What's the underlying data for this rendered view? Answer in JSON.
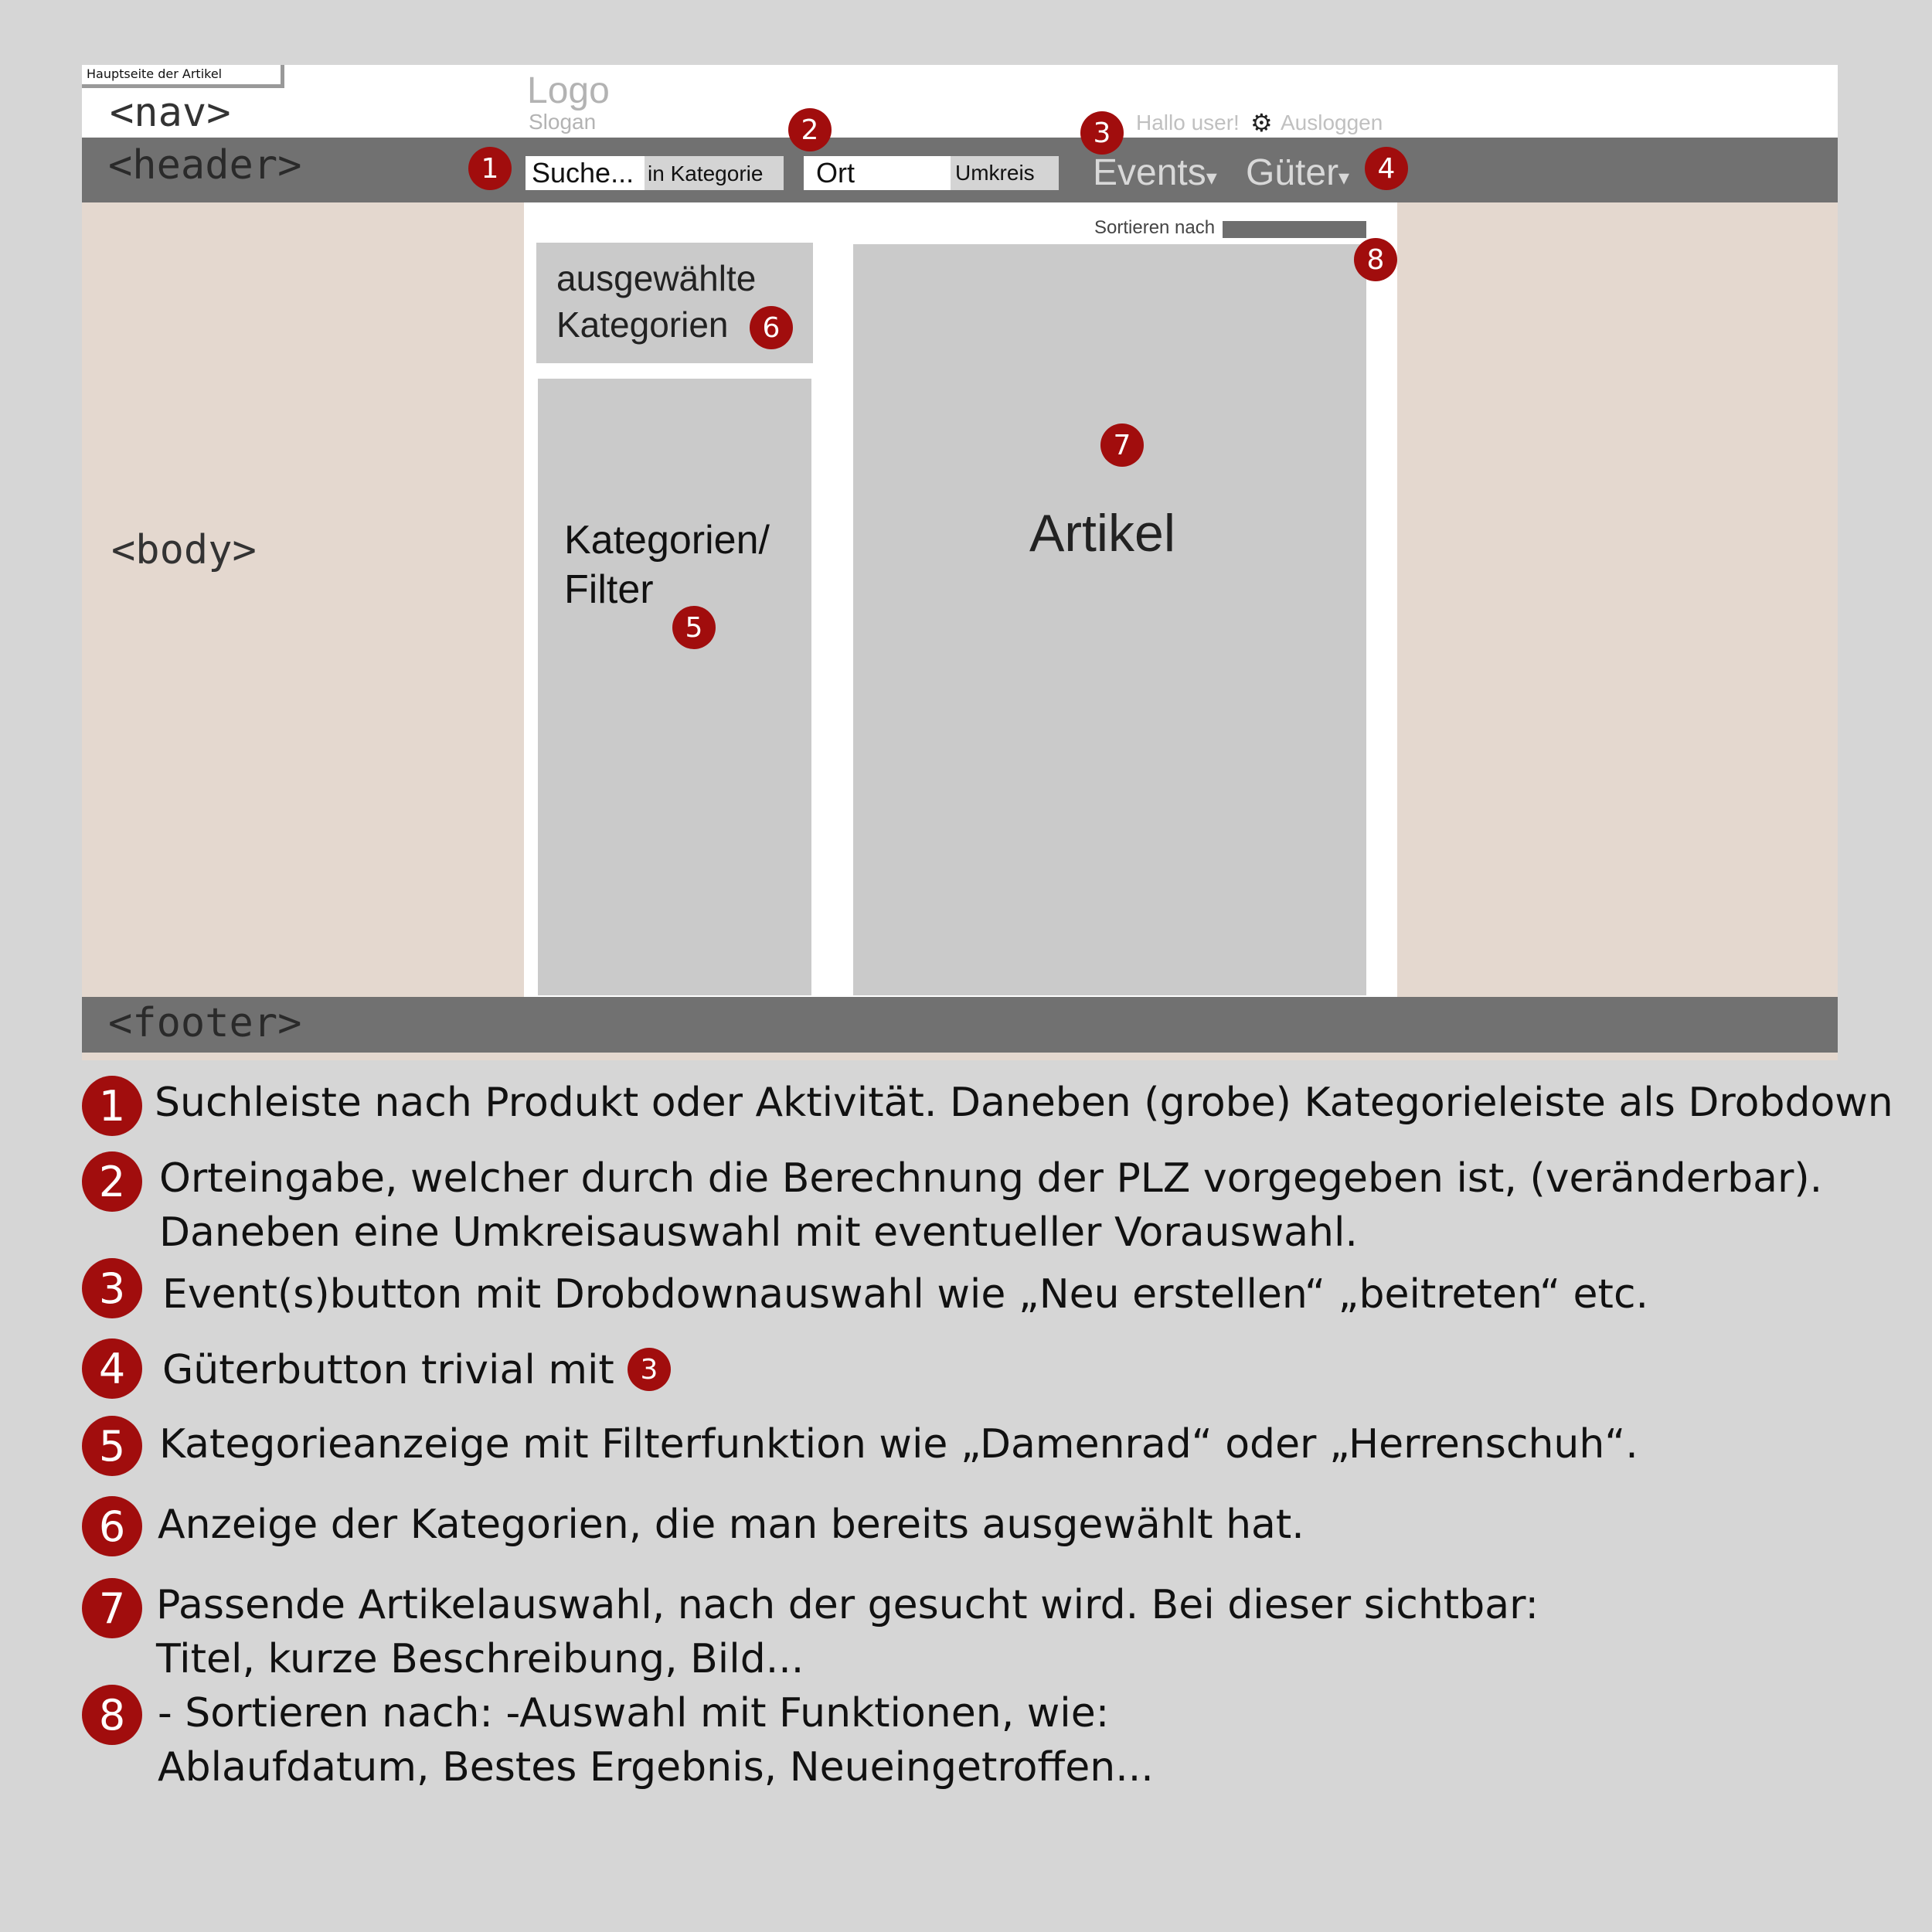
{
  "page_tab": "Hauptseite der Artikel",
  "tags": {
    "nav": "<nav>",
    "header": "<header>",
    "body": "<body>",
    "footer": "<footer>"
  },
  "brand": {
    "logo": "Logo",
    "slogan": "Slogan"
  },
  "user": {
    "greeting": "Hallo user!",
    "logout": "Ausloggen"
  },
  "search": {
    "placeholder": "Suche...",
    "category": "in Kategorie"
  },
  "location": {
    "value": "Ort",
    "radius": "Umkreis"
  },
  "menu": {
    "events": "Events",
    "goods": "Güter",
    "caret": "▾"
  },
  "sort": {
    "label": "Sortieren nach"
  },
  "panels": {
    "selected_line1": "ausgewählte",
    "selected_line2": "Kategorien",
    "filter_line1": "Kategorien/",
    "filter_line2": "Filter",
    "articles": "Artikel"
  },
  "markers": [
    "1",
    "2",
    "3",
    "4",
    "5",
    "6",
    "7",
    "8"
  ],
  "legend": [
    {
      "num": "1",
      "lines": [
        "Suchleiste nach Produkt oder Aktivität. Daneben (grobe) Kategorieleiste als Drobdown"
      ]
    },
    {
      "num": "2",
      "lines": [
        "Orteingabe, welcher durch die Berechnung der PLZ vorgegeben ist, (veränderbar).",
        "Daneben eine Umkreisauswahl mit eventueller Vorauswahl."
      ]
    },
    {
      "num": "3",
      "lines": [
        "Event(s)button mit Drobdownauswahl wie „Neu erstellen“ „beitreten“ etc."
      ]
    },
    {
      "num": "4",
      "lines": [
        "Güterbutton trivial mit"
      ],
      "ref": "3"
    },
    {
      "num": "5",
      "lines": [
        "Kategorieanzeige mit Filterfunktion wie „Damenrad“ oder „Herrenschuh“."
      ]
    },
    {
      "num": "6",
      "lines": [
        "Anzeige der Kategorien, die man bereits ausgewählt hat."
      ]
    },
    {
      "num": "7",
      "lines": [
        "Passende Artikelauswahl, nach der gesucht wird. Bei dieser sichtbar:",
        "Titel, kurze Beschreibung, Bild..."
      ]
    },
    {
      "num": "8",
      "lines": [
        "- Sortieren nach: -Auswahl mit Funktionen, wie:",
        "Ablaufdatum, Bestes Ergebnis, Neueingetroffen..."
      ]
    }
  ],
  "colors": {
    "accent": "#a10d0d",
    "header_bar": "#717171",
    "body_bg": "#e4d8cf",
    "panel": "#cacaca"
  }
}
